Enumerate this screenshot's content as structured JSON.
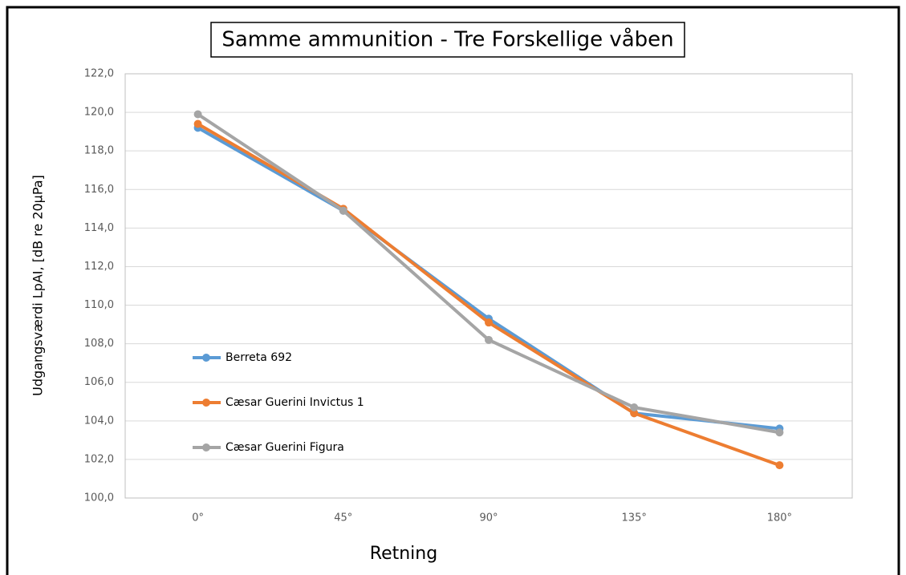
{
  "chart_data": {
    "type": "line",
    "title": "Samme ammunition - Tre Forskellige våben",
    "x_label": "Retning",
    "y_label": "Udgangsværdi LpAI, [dB re 20µPa]",
    "categories": [
      "0°",
      "45°",
      "90°",
      "135°",
      "180°"
    ],
    "series": [
      {
        "name": "Berreta 692",
        "color": "#5b9bd5",
        "values": [
          119.2,
          114.9,
          109.3,
          104.4,
          103.6
        ]
      },
      {
        "name": "Cæsar Guerini Invictus 1",
        "color": "#ed7d31",
        "values": [
          119.4,
          115.0,
          109.1,
          104.4,
          101.7
        ]
      },
      {
        "name": "Cæsar Guerini Figura",
        "color": "#a5a5a5",
        "values": [
          119.9,
          114.9,
          108.2,
          104.7,
          103.4
        ]
      }
    ],
    "ylim": [
      100,
      122
    ],
    "yticks": [
      {
        "value": 100,
        "label": "100,0"
      },
      {
        "value": 102,
        "label": "102,0"
      },
      {
        "value": 104,
        "label": "104,0"
      },
      {
        "value": 106,
        "label": "106,0"
      },
      {
        "value": 108,
        "label": "108,0"
      },
      {
        "value": 110,
        "label": "110,0"
      },
      {
        "value": 112,
        "label": "112,0"
      },
      {
        "value": 114,
        "label": "114,0"
      },
      {
        "value": 116,
        "label": "116,0"
      },
      {
        "value": 118,
        "label": "118,0"
      },
      {
        "value": 120,
        "label": "120,0"
      },
      {
        "value": 122,
        "label": "122,0"
      }
    ],
    "grid": true,
    "legend": "left"
  }
}
